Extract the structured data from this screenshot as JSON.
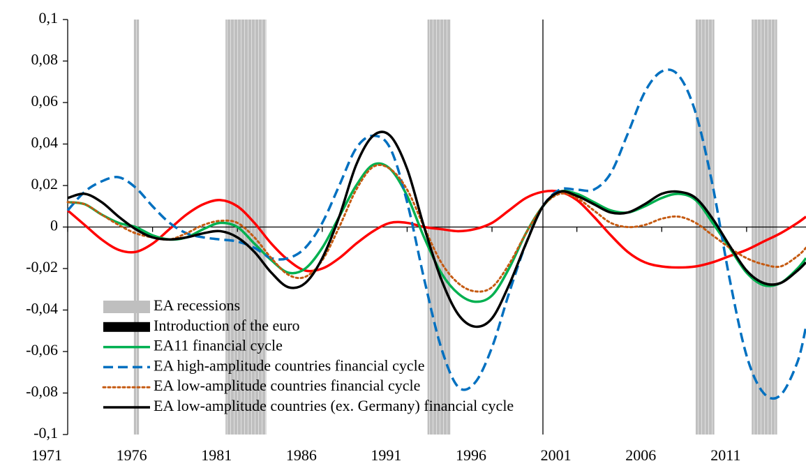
{
  "chart_data": {
    "type": "line",
    "x": [
      1971,
      1972,
      1973,
      1974,
      1975,
      1976,
      1977,
      1978,
      1979,
      1980,
      1981,
      1982,
      1983,
      1984,
      1985,
      1986,
      1987,
      1988,
      1989,
      1990,
      1991,
      1992,
      1993,
      1994,
      1995,
      1996,
      1997,
      1998,
      1999,
      2000,
      2001,
      2002,
      2003,
      2004,
      2005,
      2006,
      2007,
      2008,
      2009,
      2010,
      2011,
      2012,
      2013,
      2014,
      2014.5
    ],
    "series": [
      {
        "name": null,
        "color": "#ff0000",
        "dash": "solid",
        "values": [
          0.008,
          0.001,
          -0.006,
          -0.011,
          -0.012,
          -0.008,
          -0.001,
          0.006,
          0.011,
          0.013,
          0.01,
          0.002,
          -0.008,
          -0.016,
          -0.021,
          -0.02,
          -0.015,
          -0.008,
          -0.002,
          0.002,
          0.002,
          0.0,
          -0.001,
          -0.002,
          -0.001,
          0.002,
          0.008,
          0.014,
          0.017,
          0.017,
          0.013,
          0.005,
          -0.004,
          -0.012,
          -0.017,
          -0.019,
          -0.0195,
          -0.019,
          -0.017,
          -0.014,
          -0.011,
          -0.007,
          -0.003,
          0.002,
          0.005
        ]
      },
      {
        "name": "EA11 financial cycle",
        "color": "#00b050",
        "dash": "solid",
        "values": [
          0.012,
          0.011,
          0.006,
          0.002,
          0.0,
          -0.004,
          -0.006,
          -0.005,
          -0.001,
          0.002,
          0.0,
          -0.008,
          -0.016,
          -0.022,
          -0.02,
          -0.01,
          0.005,
          0.02,
          0.03,
          0.028,
          0.015,
          -0.005,
          -0.022,
          -0.032,
          -0.036,
          -0.033,
          -0.02,
          -0.003,
          0.01,
          0.017,
          0.016,
          0.012,
          0.008,
          0.007,
          0.01,
          0.014,
          0.016,
          0.013,
          0.002,
          -0.01,
          -0.022,
          -0.028,
          -0.027,
          -0.02,
          -0.015
        ]
      },
      {
        "name": "EA high-amplitude countries financial cycle",
        "color": "#0070c0",
        "dash": "dashed",
        "values": [
          0.008,
          0.017,
          0.022,
          0.024,
          0.019,
          0.01,
          0.002,
          -0.003,
          -0.005,
          -0.006,
          -0.007,
          -0.01,
          -0.015,
          -0.015,
          -0.01,
          0.002,
          0.02,
          0.038,
          0.044,
          0.038,
          0.012,
          -0.025,
          -0.058,
          -0.077,
          -0.075,
          -0.058,
          -0.032,
          -0.008,
          0.01,
          0.018,
          0.018,
          0.018,
          0.026,
          0.045,
          0.065,
          0.075,
          0.073,
          0.055,
          0.02,
          -0.025,
          -0.062,
          -0.08,
          -0.081,
          -0.065,
          -0.048
        ]
      },
      {
        "name": "EA low-amplitude countries financial cycle",
        "color": "#c55a11",
        "dash": "dotted",
        "values": [
          0.012,
          0.011,
          0.006,
          0.001,
          -0.003,
          -0.005,
          -0.006,
          -0.003,
          0.001,
          0.003,
          0.002,
          -0.005,
          -0.015,
          -0.023,
          -0.024,
          -0.016,
          0.0,
          0.018,
          0.029,
          0.028,
          0.018,
          0.0,
          -0.017,
          -0.027,
          -0.031,
          -0.029,
          -0.018,
          -0.003,
          0.01,
          0.016,
          0.014,
          0.008,
          0.002,
          0.0,
          0.001,
          0.004,
          0.005,
          0.002,
          -0.004,
          -0.01,
          -0.015,
          -0.018,
          -0.019,
          -0.014,
          -0.01
        ]
      },
      {
        "name": "EA low-amplitude countries (ex. Germany) financial cycle",
        "color": "#000000",
        "dash": "solid",
        "values": [
          0.014,
          0.016,
          0.012,
          0.005,
          -0.001,
          -0.005,
          -0.006,
          -0.005,
          -0.003,
          -0.002,
          -0.005,
          -0.012,
          -0.022,
          -0.029,
          -0.027,
          -0.015,
          0.005,
          0.03,
          0.044,
          0.044,
          0.028,
          0.0,
          -0.025,
          -0.042,
          -0.048,
          -0.044,
          -0.028,
          -0.008,
          0.01,
          0.017,
          0.015,
          0.011,
          0.007,
          0.007,
          0.011,
          0.016,
          0.017,
          0.014,
          0.004,
          -0.009,
          -0.021,
          -0.027,
          -0.027,
          -0.021,
          -0.017
        ]
      }
    ],
    "recessions": {
      "name": "EA recessions",
      "color": "#bfbfbf",
      "periods": [
        [
          1974.9,
          1975.2
        ],
        [
          1980.3,
          1982.7
        ],
        [
          1992.2,
          1993.55
        ],
        [
          2008.0,
          2009.1
        ],
        [
          2011.3,
          2012.8
        ]
      ]
    },
    "euro": {
      "name": "Introduction of the euro",
      "color": "#000000",
      "x": 1999
    },
    "xlim": [
      1971,
      2014.5
    ],
    "xticks": [
      1971,
      1976,
      1981,
      1986,
      1991,
      1996,
      2001,
      2006,
      2011
    ],
    "ylim": [
      -0.1,
      0.1
    ],
    "yticks": [
      {
        "value": -0.1,
        "label": "-0,1"
      },
      {
        "value": -0.08,
        "label": "-0,08"
      },
      {
        "value": -0.06,
        "label": "-0,06"
      },
      {
        "value": -0.04,
        "label": "-0,04"
      },
      {
        "value": -0.02,
        "label": "-0,02"
      },
      0,
      {
        "value": 0.02,
        "label": "0,02"
      },
      {
        "value": 0.04,
        "label": "0,04"
      },
      {
        "value": 0.06,
        "label": "0,06"
      },
      {
        "value": 0.08,
        "label": "0,08"
      },
      {
        "value": 0.1,
        "label": "0,1"
      }
    ],
    "legend": "lower-left"
  }
}
